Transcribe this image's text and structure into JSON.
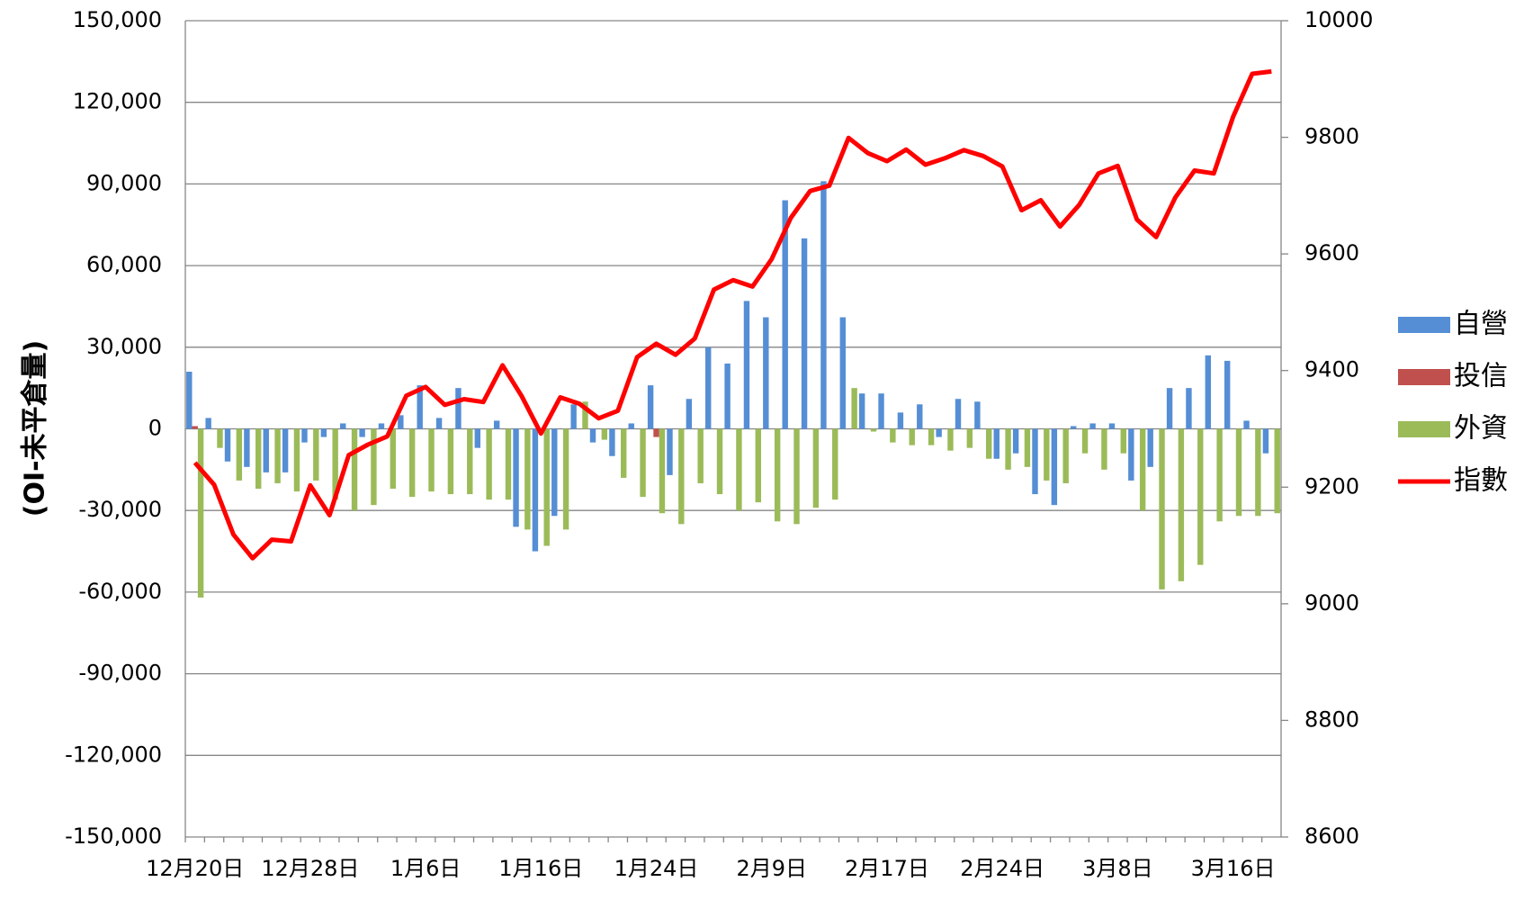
{
  "chart_data": {
    "type": "bar_line",
    "y_label": "(OI-未平倉量)",
    "categories": [
      "12月20日",
      null,
      null,
      null,
      null,
      null,
      "12月28日",
      null,
      null,
      null,
      null,
      null,
      "1月6日",
      null,
      null,
      null,
      null,
      null,
      "1月16日",
      null,
      null,
      null,
      null,
      null,
      "1月24日",
      null,
      null,
      null,
      null,
      null,
      "2月9日",
      null,
      null,
      null,
      null,
      null,
      "2月17日",
      null,
      null,
      null,
      null,
      null,
      "2月24日",
      null,
      null,
      null,
      null,
      null,
      "3月8日",
      null,
      null,
      null,
      null,
      null,
      "3月16日",
      null,
      null
    ],
    "series": [
      {
        "name": "自營",
        "color": "#558ed5",
        "type": "bar",
        "values": [
          21000,
          4000,
          -12000,
          -14000,
          -16000,
          -16000,
          -5000,
          -3000,
          2000,
          -3000,
          2000,
          5000,
          16000,
          4000,
          15000,
          -7000,
          3000,
          -36000,
          -45000,
          -32000,
          9000,
          -5000,
          -10000,
          2000,
          16000,
          -17000,
          11000,
          30000,
          24000,
          47000,
          41000,
          84000,
          70000,
          91000,
          41000,
          13000,
          13000,
          6000,
          9000,
          -3000,
          11000,
          10000,
          -11000,
          -9000,
          -24000,
          -28000,
          1000,
          2000,
          2000,
          -19000,
          -14000,
          15000,
          15000,
          27000,
          25000,
          3000,
          -9000
        ]
      },
      {
        "name": "投信",
        "color": "#c0504d",
        "type": "bar",
        "values": [
          1000,
          0,
          0,
          0,
          0,
          0,
          0,
          0,
          0,
          0,
          0,
          0,
          0,
          0,
          0,
          0,
          0,
          0,
          0,
          0,
          0,
          0,
          0,
          0,
          -3000,
          0,
          0,
          0,
          0,
          0,
          0,
          0,
          0,
          0,
          0,
          0,
          0,
          0,
          0,
          0,
          0,
          0,
          0,
          0,
          0,
          0,
          0,
          0,
          0,
          0,
          0,
          0,
          0,
          0,
          0,
          0,
          0
        ]
      },
      {
        "name": "外資",
        "color": "#9bbb59",
        "type": "bar",
        "values": [
          -62000,
          -7000,
          -19000,
          -22000,
          -20000,
          -23000,
          -19000,
          -26000,
          -30000,
          -28000,
          -22000,
          -25000,
          -23000,
          -24000,
          -24000,
          -26000,
          -26000,
          -37000,
          -43000,
          -37000,
          10000,
          -4000,
          -18000,
          -25000,
          -31000,
          -35000,
          -20000,
          -24000,
          -30000,
          -27000,
          -34000,
          -35000,
          -29000,
          -26000,
          15000,
          -1000,
          -5000,
          -6000,
          -6000,
          -8000,
          -7000,
          -11000,
          -15000,
          -14000,
          -19000,
          -20000,
          -9000,
          -15000,
          -9000,
          -30000,
          -59000,
          -56000,
          -50000,
          -34000,
          -32000,
          -32000,
          -31000
        ]
      },
      {
        "name": "指數",
        "color": "#ff0000",
        "type": "line",
        "axis": "y2",
        "values": [
          9242,
          9204,
          9119,
          9078,
          9110,
          9107,
          9203,
          9152,
          9255,
          9273,
          9287,
          9357,
          9372,
          9341,
          9351,
          9346,
          9409,
          9356,
          9292,
          9354,
          9343,
          9318,
          9331,
          9423,
          9446,
          9427,
          9455,
          9539,
          9555,
          9544,
          9591,
          9662,
          9708,
          9717,
          9799,
          9773,
          9759,
          9779,
          9753,
          9764,
          9778,
          9768,
          9750,
          9675,
          9692,
          9647,
          9684,
          9738,
          9751,
          9659,
          9629,
          9697,
          9743,
          9738,
          9835,
          9909,
          9913
        ]
      }
    ],
    "ylim": [
      -150000,
      150000
    ],
    "yticks": [
      {
        "value": -150000,
        "label": "-150,000"
      },
      {
        "value": -120000,
        "label": "-120,000"
      },
      {
        "value": -90000,
        "label": "-90,000"
      },
      {
        "value": -60000,
        "label": "-60,000"
      },
      {
        "value": -30000,
        "label": "-30,000"
      },
      0,
      {
        "value": 30000,
        "label": "30,000"
      },
      {
        "value": 60000,
        "label": "60,000"
      },
      {
        "value": 90000,
        "label": "90,000"
      },
      {
        "value": 120000,
        "label": "120,000"
      },
      {
        "value": 150000,
        "label": "150,000"
      }
    ],
    "y2lim": [
      8600,
      10000
    ],
    "y2ticks": [
      8600,
      8800,
      9000,
      9200,
      9400,
      9600,
      9800,
      10000
    ],
    "grid": true,
    "legend": "right"
  }
}
